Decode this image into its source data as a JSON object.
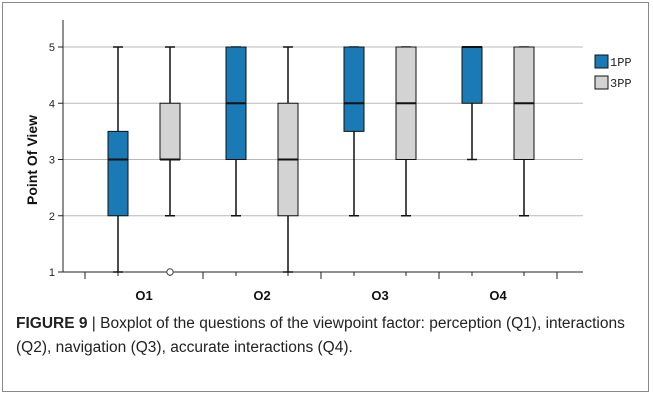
{
  "chart_data": {
    "type": "boxplot",
    "categories": [
      "Q1",
      "Q2",
      "Q3",
      "Q4"
    ],
    "ylabel": "Point Of View",
    "xlabel": "",
    "ylim": [
      1,
      5
    ],
    "yticks": [
      1,
      2,
      3,
      4,
      5
    ],
    "grid": true,
    "legend_position": "right",
    "series": [
      {
        "name": "1PP",
        "color": "#1a7ab5",
        "boxes": [
          {
            "whisker_low": 1,
            "q1": 2,
            "median": 3,
            "q3": 3.5,
            "whisker_high": 5,
            "outliers": []
          },
          {
            "whisker_low": 2,
            "q1": 3,
            "median": 4,
            "q3": 5,
            "whisker_high": 5,
            "outliers": []
          },
          {
            "whisker_low": 2,
            "q1": 3.5,
            "median": 4,
            "q3": 5,
            "whisker_high": 5,
            "outliers": []
          },
          {
            "whisker_low": 3,
            "q1": 4,
            "median": 5,
            "q3": 5,
            "whisker_high": 5,
            "outliers": []
          }
        ]
      },
      {
        "name": "3PP",
        "color": "#d3d3d3",
        "boxes": [
          {
            "whisker_low": 2,
            "q1": 3,
            "median": 3,
            "q3": 4,
            "whisker_high": 5,
            "outliers": [
              1
            ]
          },
          {
            "whisker_low": 1,
            "q1": 2,
            "median": 3,
            "q3": 4,
            "whisker_high": 5,
            "outliers": []
          },
          {
            "whisker_low": 2,
            "q1": 3,
            "median": 4,
            "q3": 5,
            "whisker_high": 5,
            "outliers": []
          },
          {
            "whisker_low": 2,
            "q1": 3,
            "median": 4,
            "q3": 5,
            "whisker_high": 5,
            "outliers": []
          }
        ]
      }
    ]
  },
  "caption": {
    "label": "FIGURE 9",
    "text": " | Boxplot of the questions of the viewpoint factor: perception (Q1), interactions (Q2), navigation (Q3), accurate interactions (Q4)."
  }
}
